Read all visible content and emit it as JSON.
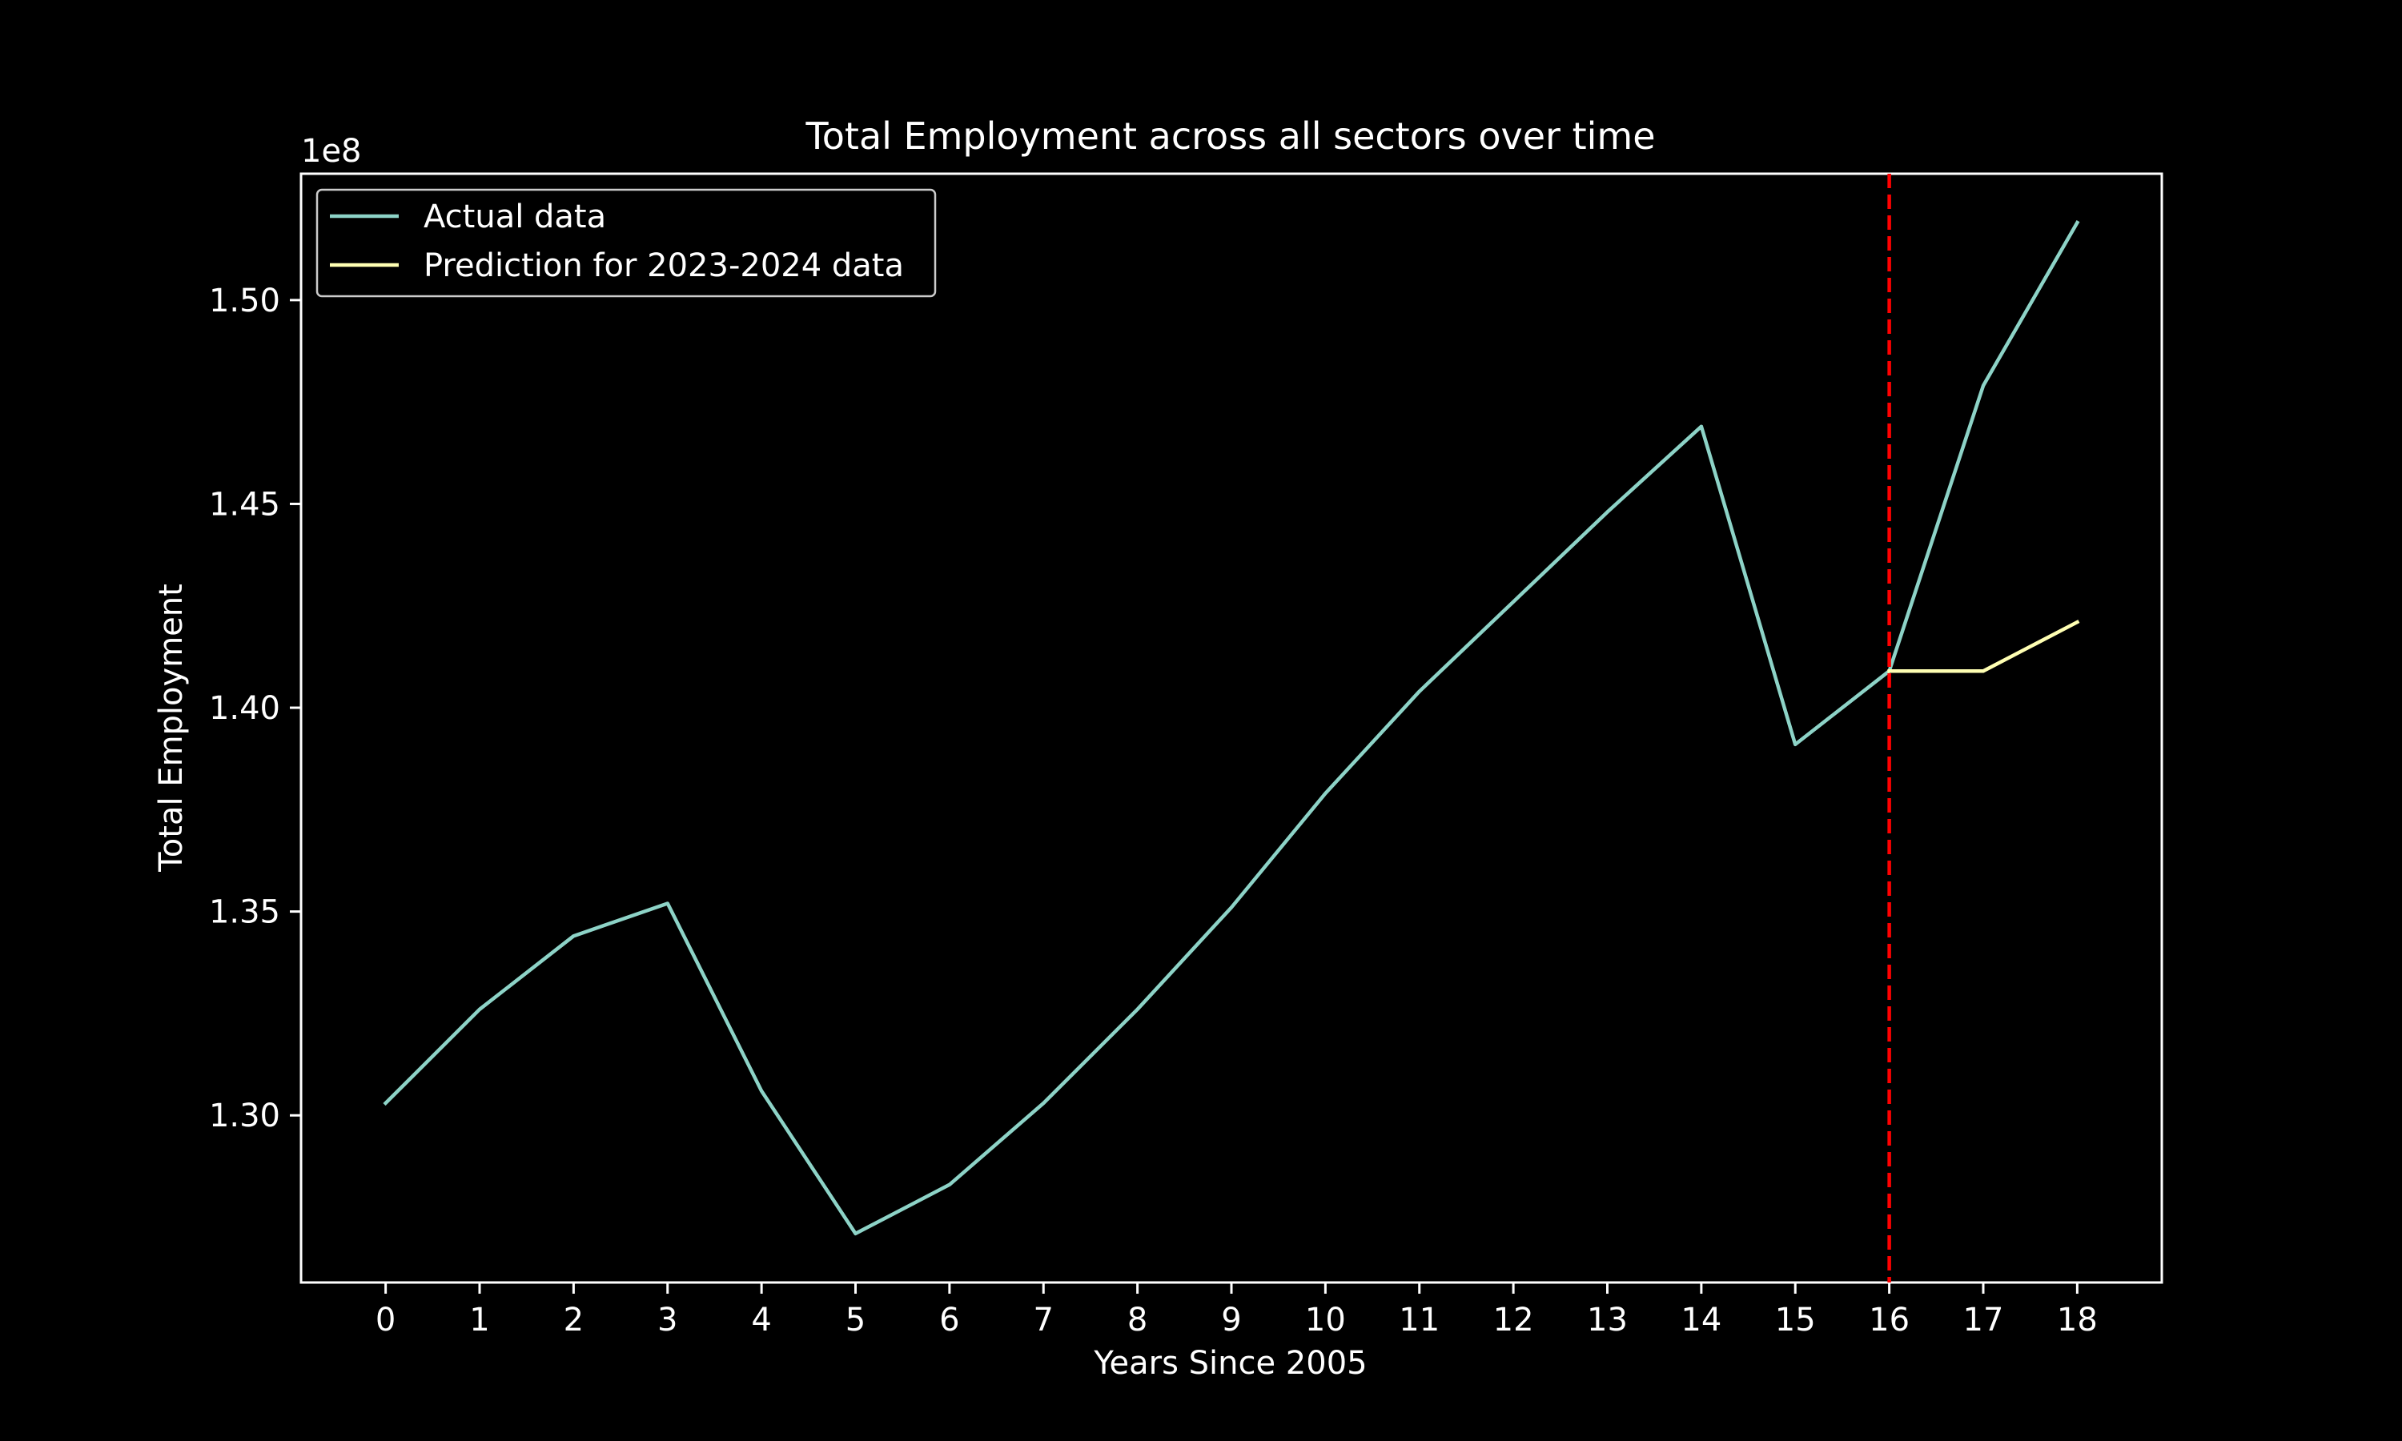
{
  "chart_data": {
    "type": "line",
    "title": "Total Employment across all sectors over time",
    "xlabel": "Years Since 2005",
    "ylabel": "Total Employment",
    "offset_label": "1e8",
    "x_ticks": [
      "0",
      "1",
      "2",
      "3",
      "4",
      "5",
      "6",
      "7",
      "8",
      "9",
      "10",
      "11",
      "12",
      "13",
      "14",
      "15",
      "16",
      "17",
      "18"
    ],
    "y_ticks": [
      "1.30",
      "1.35",
      "1.40",
      "1.45",
      "1.50"
    ],
    "y_tick_values": [
      1.3,
      1.35,
      1.4,
      1.45,
      1.5
    ],
    "xlim": [
      -0.9,
      18.9
    ],
    "ylim": [
      1.259,
      1.531
    ],
    "grid": false,
    "legend_position": "upper left",
    "series": [
      {
        "name": "Actual data",
        "color": "#8dd3c7",
        "x": [
          0,
          1,
          2,
          3,
          4,
          5,
          6,
          7,
          8,
          9,
          10,
          11,
          12,
          13,
          14,
          15,
          16,
          17,
          18
        ],
        "y": [
          1.303,
          1.326,
          1.344,
          1.352,
          1.306,
          1.271,
          1.283,
          1.303,
          1.326,
          1.351,
          1.379,
          1.404,
          1.426,
          1.448,
          1.469,
          1.391,
          1.409,
          1.479,
          1.519
        ]
      },
      {
        "name": "Prediction for 2023-2024 data",
        "color": "#ffffb3",
        "x": [
          16,
          17,
          18
        ],
        "y": [
          1.409,
          1.409,
          1.421
        ]
      }
    ],
    "vertical_line": {
      "x": 16,
      "color": "#ff0000",
      "style": "dashed"
    }
  }
}
